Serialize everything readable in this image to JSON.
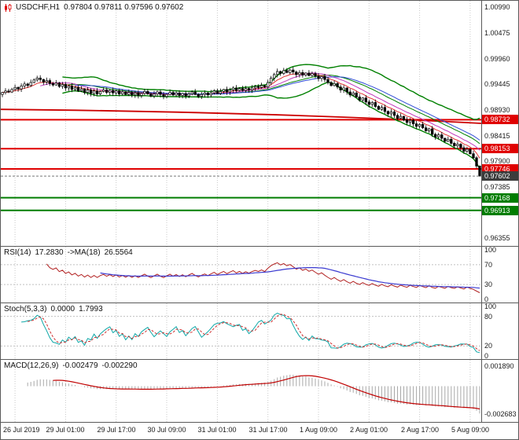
{
  "chart_data": {
    "type": "candlestick",
    "symbol": "USDCHF",
    "timeframe": "H1",
    "main": {
      "symbol_label": "USDCHF,H1",
      "ohlc_text": "0.97804 0.97811 0.97596 0.97602",
      "last_candle": {
        "open": 0.97804,
        "high": 0.97811,
        "low": 0.97596,
        "close": 0.97602
      },
      "y_axis": [
        {
          "text": "1.00990",
          "value": 1.0099
        },
        {
          "text": "1.00475",
          "value": 1.00475
        },
        {
          "text": "0.99960",
          "value": 0.9996
        },
        {
          "text": "0.99445",
          "value": 0.99445
        },
        {
          "text": "0.98930",
          "value": 0.9893
        },
        {
          "text": "0.98415",
          "value": 0.98415
        },
        {
          "text": "0.97900",
          "value": 0.979
        },
        {
          "text": "0.97385",
          "value": 0.97385
        },
        {
          "text": "0.96355",
          "value": 0.96355
        }
      ],
      "levels": [
        {
          "label": "0.98732",
          "value": 0.98732,
          "color": "#e00000",
          "kind": "resistance"
        },
        {
          "label": "0.98153",
          "value": 0.98153,
          "color": "#e00000",
          "kind": "resistance"
        },
        {
          "label": "0.97746",
          "value": 0.97746,
          "color": "#e00000",
          "kind": "resistance"
        },
        {
          "label": "0.97168",
          "value": 0.97168,
          "color": "#007d00",
          "kind": "support"
        },
        {
          "label": "0.96913",
          "value": 0.96913,
          "color": "#007d00",
          "kind": "support"
        }
      ],
      "current_price": {
        "label": "0.97602",
        "value": 0.97602,
        "tag_color": "#3c3c3c"
      },
      "overlays": {
        "bollinger": {
          "period": 20,
          "deviation": 2,
          "color": "#008000"
        },
        "ma_fast": {
          "period": 8,
          "method": "ema",
          "color": "#e03131"
        },
        "ma_mid": {
          "period": 13,
          "method": "sma",
          "color": "#c23bbd"
        },
        "ma_slow": {
          "period": 24,
          "method": "sma",
          "color": "#2e4bd6"
        },
        "trend_ma": {
          "color": "#cc0000",
          "start": 0.9894,
          "mid": 0.9889,
          "end": 0.9866
        }
      }
    },
    "x_axis": {
      "labels": [
        "26 Jul 2019",
        "29 Jul 01:00",
        "29 Jul 17:00",
        "30 Jul 09:00",
        "31 Jul 01:00",
        "31 Jul 17:00",
        "1 Aug 09:00",
        "2 Aug 01:00",
        "2 Aug 17:00",
        "5 Aug 09:00"
      ]
    },
    "closes": [
      0.9928,
      0.9931,
      0.9929,
      0.9934,
      0.9938,
      0.9935,
      0.9941,
      0.9945,
      0.9942,
      0.9948,
      0.9953,
      0.9957,
      0.9954,
      0.9949,
      0.9952,
      0.9946,
      0.9943,
      0.9947,
      0.994,
      0.9944,
      0.9937,
      0.9941,
      0.9934,
      0.9938,
      0.9931,
      0.9935,
      0.9928,
      0.9933,
      0.9926,
      0.9931,
      0.9925,
      0.993,
      0.9933,
      0.9928,
      0.9932,
      0.9927,
      0.9931,
      0.9925,
      0.9929,
      0.9924,
      0.9928,
      0.9923,
      0.9927,
      0.9922,
      0.9926,
      0.993,
      0.9925,
      0.9921,
      0.9925,
      0.9929,
      0.9924,
      0.992,
      0.9924,
      0.9928,
      0.9923,
      0.9927,
      0.9922,
      0.9926,
      0.9921,
      0.9925,
      0.9929,
      0.9924,
      0.992,
      0.9924,
      0.9927,
      0.9923,
      0.9927,
      0.9931,
      0.9926,
      0.993,
      0.9934,
      0.9929,
      0.9933,
      0.9937,
      0.9932,
      0.9936,
      0.9932,
      0.9936,
      0.9933,
      0.9937,
      0.994,
      0.9938,
      0.9942,
      0.9939,
      0.9948,
      0.9957,
      0.9964,
      0.997,
      0.9966,
      0.9972,
      0.9968,
      0.9973,
      0.9969,
      0.9964,
      0.9968,
      0.9963,
      0.9967,
      0.9962,
      0.9966,
      0.9961,
      0.9956,
      0.996,
      0.9954,
      0.9948,
      0.9942,
      0.9946,
      0.9939,
      0.9933,
      0.9937,
      0.9929,
      0.9923,
      0.9927,
      0.9919,
      0.9913,
      0.9917,
      0.9909,
      0.9904,
      0.9908,
      0.99,
      0.9894,
      0.9898,
      0.989,
      0.9885,
      0.9889,
      0.9882,
      0.9876,
      0.988,
      0.9873,
      0.9868,
      0.9872,
      0.9865,
      0.986,
      0.9864,
      0.9857,
      0.9851,
      0.9855,
      0.9844,
      0.9839,
      0.9843,
      0.9836,
      0.983,
      0.9834,
      0.9826,
      0.9821,
      0.9824,
      0.9817,
      0.981,
      0.9814,
      0.9805,
      0.9797,
      0.97804,
      0.97602
    ]
  },
  "indicators": {
    "rsi": {
      "label": "RSI(14)",
      "value": "17.2830",
      "ma_label": "->MA(18)",
      "ma_value": "26.5564",
      "period": 14,
      "ma_period": 18,
      "line_color": "#b22222",
      "ma_color": "#3a3ad0",
      "levels": [
        70,
        30
      ],
      "axis": [
        {
          "text": "100",
          "value": 100
        },
        {
          "text": "70",
          "value": 70
        },
        {
          "text": "30",
          "value": 30
        },
        {
          "text": "0",
          "value": 0
        }
      ]
    },
    "stoch": {
      "label": "Stoch(5,3,3)",
      "value": "0.0000",
      "signal_value": "1.7993",
      "k": 5,
      "d": 3,
      "slowing": 3,
      "line_color": "#0fa8a8",
      "signal_color": "#d03030",
      "levels": [
        80,
        20
      ],
      "axis": [
        {
          "text": "100",
          "value": 100
        },
        {
          "text": "80",
          "value": 80
        },
        {
          "text": "20",
          "value": 20
        },
        {
          "text": "0",
          "value": 0
        }
      ]
    },
    "macd": {
      "label": "MACD(12,26,9)",
      "value": "-0.002479",
      "signal_value": "-0.002290",
      "fast": 12,
      "slow": 26,
      "signal": 9,
      "hist_color": "#a8a8a8",
      "signal_color": "#c00000",
      "axis": [
        {
          "text": "0.001890",
          "value": 0.00189
        },
        {
          "text": "-0.002683",
          "value": -0.002683
        }
      ]
    }
  },
  "colors": {
    "background": "#ffffff",
    "border": "#5a5a5a",
    "grid": "#c9c9c9",
    "candle_up_fill": "#ffffff",
    "candle_down_fill": "#000000",
    "candle_stroke": "#000000"
  }
}
